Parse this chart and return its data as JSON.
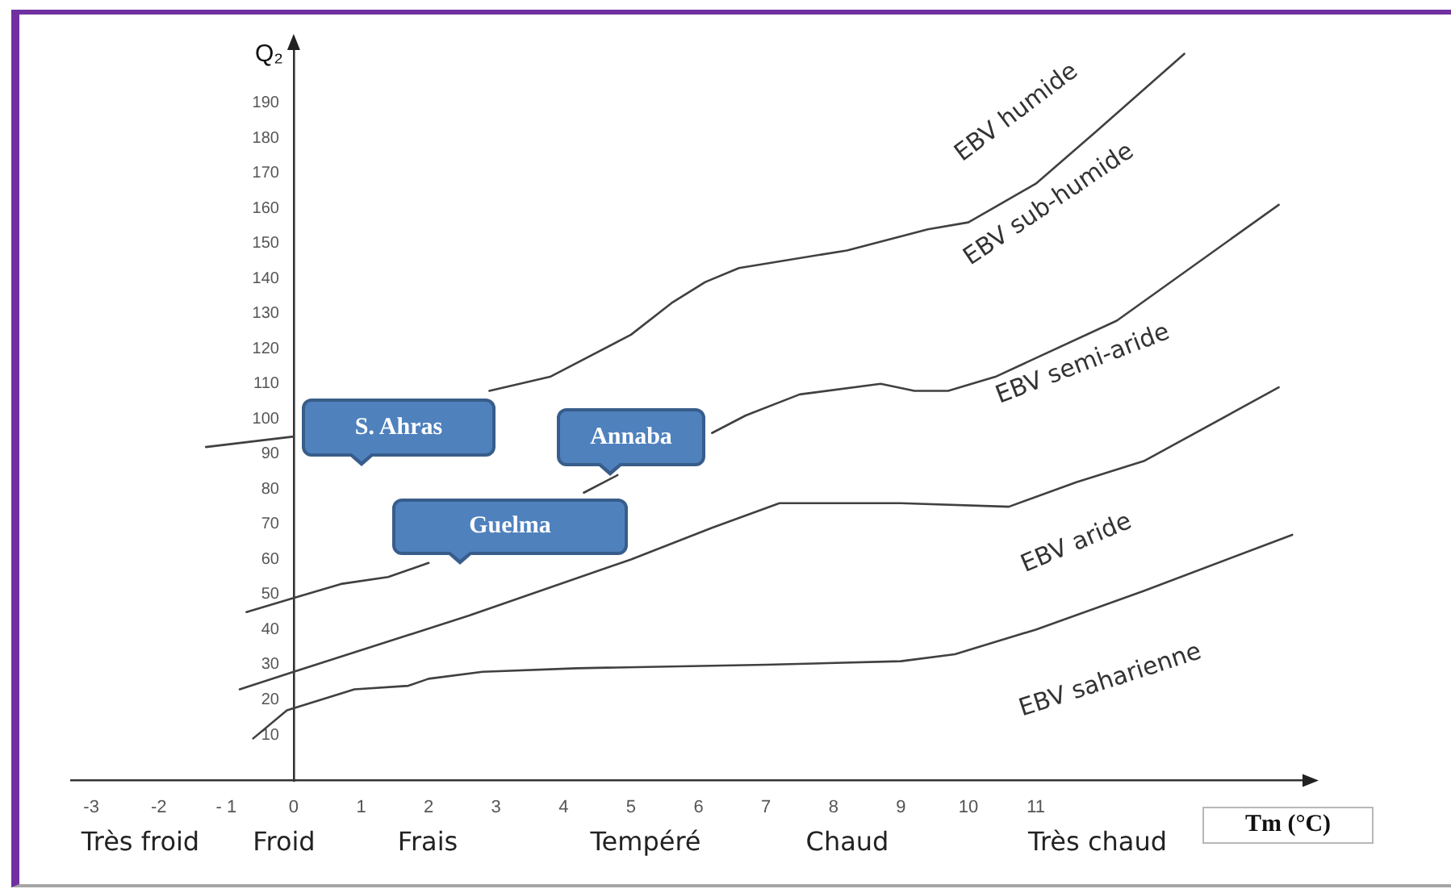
{
  "chart_data": {
    "type": "line",
    "xlabel": "Tm (°C)",
    "ylabel": "Q₂",
    "xlim": [
      -3.3,
      15
    ],
    "xticks": [
      -3,
      -2,
      {
        "value": -1,
        "label": "- 1"
      },
      0,
      1,
      2,
      3,
      4,
      5,
      6,
      7,
      8,
      9,
      10,
      11
    ],
    "ylim": [
      -3,
      206
    ],
    "yticks": [
      10,
      20,
      30,
      40,
      50,
      60,
      70,
      80,
      90,
      100,
      110,
      120,
      130,
      140,
      150,
      160,
      170,
      180,
      190
    ],
    "grid": false,
    "legend": false,
    "marker": "none",
    "line_style": "solid",
    "series": [
      {
        "color": "#404040",
        "x": [
          -1.3,
          0,
          1.5,
          2.9,
          3.8,
          5.0,
          5.6,
          6.1,
          6.6,
          8.2,
          9.4,
          10.0,
          11.0,
          11.9,
          13.2
        ],
        "values": [
          92,
          95,
          null,
          108,
          112,
          124,
          133,
          139,
          143,
          148,
          154,
          156,
          167,
          182,
          204
        ]
      },
      {
        "color": "#404040",
        "x": [
          -0.7,
          0,
          0.7,
          1.4,
          2.0,
          3.2,
          4.3,
          4.8,
          5.5,
          6.2,
          6.7,
          7.5,
          8.7,
          9.2,
          9.7,
          10.4,
          12.2,
          14.6
        ],
        "values": [
          45,
          49,
          53,
          55,
          59,
          null,
          79,
          84,
          null,
          96,
          101,
          107,
          110,
          108,
          108,
          112,
          128,
          161
        ]
      },
      {
        "color": "#404040",
        "x": [
          -0.8,
          0,
          2.6,
          5.0,
          6.2,
          7.2,
          7.6,
          9.0,
          10.6,
          11.6,
          12.6,
          14.6
        ],
        "values": [
          23,
          28,
          44,
          60,
          69,
          76,
          76,
          76,
          75,
          82,
          88,
          109
        ]
      },
      {
        "color": "#404040",
        "x": [
          -0.6,
          -0.1,
          0.9,
          1.7,
          2.0,
          2.8,
          4.2,
          7.0,
          9.0,
          9.8,
          11.0,
          12.6,
          14.8
        ],
        "values": [
          9,
          17,
          23,
          24,
          26,
          28,
          29,
          30,
          31,
          33,
          40,
          51,
          67
        ]
      }
    ],
    "annotations": [
      "S. Ahras",
      "Annaba",
      "Guelma",
      "EBV humide",
      "EBV sub-humide",
      "EBV semi-aride",
      "EBV aride",
      "EBV saharienne",
      "Très froid",
      "Froid",
      "Frais",
      "Tempéré",
      "Chaud",
      "Très chaud"
    ]
  }
}
